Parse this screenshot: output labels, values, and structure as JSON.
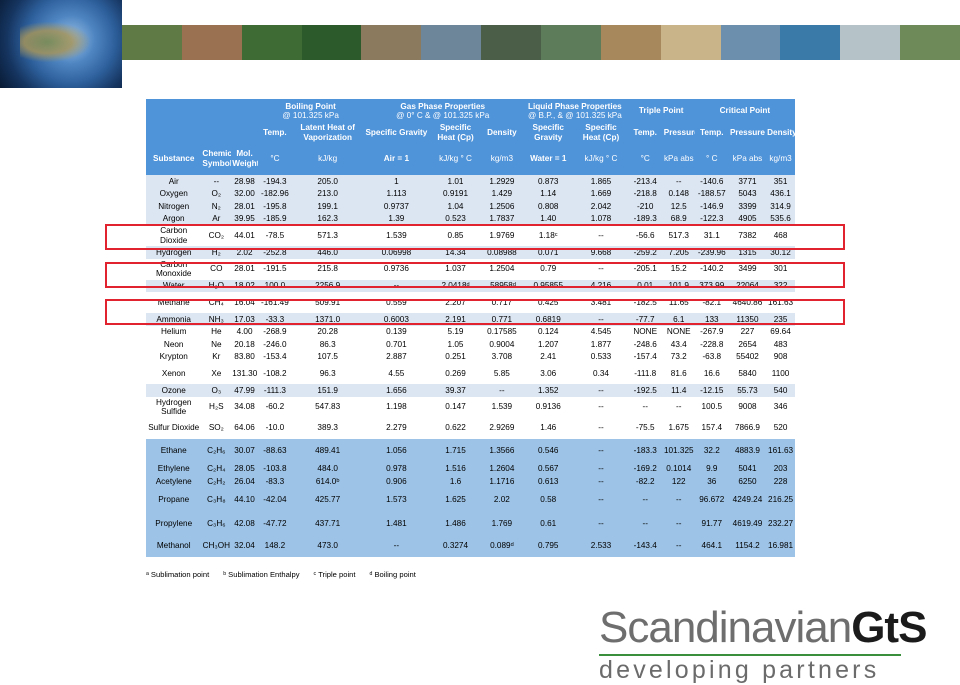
{
  "banner": {
    "tiles": [
      "#5f7a45",
      "#9a7252",
      "#3e6b34",
      "#2d5a2a",
      "#8b7a5e",
      "#6e8699",
      "#4a5e48",
      "#5d7d5a",
      "#a7885c",
      "#c9b489",
      "#6d8fae",
      "#3a7aa8",
      "#b5c2c8",
      "#6e8a59"
    ]
  },
  "table": {
    "group_headers": {
      "bp_title": "Boiling Point",
      "bp_sub": "@ 101.325 kPa",
      "gas_title": "Gas Phase Properties",
      "gas_sub": "@ 0° C & @ 101.325 kPa",
      "liq_title": "Liquid Phase Properties",
      "liq_sub": "@ B.P., & @ 101.325 kPa",
      "triple": "Triple Point",
      "critical": "Critical Point"
    },
    "sub_headers": {
      "bp_temp": "Temp.",
      "bp_latent": "Latent Heat of Vaporization",
      "gas_sg": "Specific Gravity",
      "gas_cp": "Specific Heat (Cp)",
      "gas_density": "Density",
      "liq_sg": "Specific Gravity",
      "liq_cp": "Specific Heat (Cp)",
      "tp_temp": "Temp.",
      "tp_pressure": "Pressure",
      "cp_temp": "Temp.",
      "cp_pressure": "Pressure",
      "cp_density": "Density"
    },
    "unit_headers": {
      "substance": "Substance",
      "symbol": "Chemical Symbol",
      "mol": "Mol. Weight",
      "bp_temp": "°C",
      "bp_latent": "kJ/kg",
      "gas_sg": "Air = 1",
      "gas_cp": "kJ/kg ° C",
      "gas_density": "kg/m3",
      "liq_sg": "Water = 1",
      "liq_cp": "kJ/kg ° C",
      "tp_temp": "°C",
      "tp_pressure": "kPa abs",
      "cp_temp": "° C",
      "cp_pressure": "kPa abs",
      "cp_density": "kg/m3"
    },
    "rows": [
      {
        "name": "Air",
        "symbol": "--",
        "mw": "28.98",
        "bp": "-194.3",
        "latent": "205.0",
        "gsg": "1",
        "gcp": "1.01",
        "gden": "1.2929",
        "lsg": "0.873",
        "lcp": "1.865",
        "tpt": "-213.4",
        "tpp": "--",
        "cpt": "-140.6",
        "cpp": "3771",
        "cpd": "351"
      },
      {
        "name": "Oxygen",
        "symbol": "O₂",
        "mw": "32.00",
        "bp": "-182.96",
        "latent": "213.0",
        "gsg": "1.113",
        "gcp": "0.9191",
        "gden": "1.429",
        "lsg": "1.14",
        "lcp": "1.669",
        "tpt": "-218.8",
        "tpp": "0.148",
        "cpt": "-188.57",
        "cpp": "5043",
        "cpd": "436.1"
      },
      {
        "name": "Nitrogen",
        "symbol": "N₂",
        "mw": "28.01",
        "bp": "-195.8",
        "latent": "199.1",
        "gsg": "0.9737",
        "gcp": "1.04",
        "gden": "1.2506",
        "lsg": "0.808",
        "lcp": "2.042",
        "tpt": "-210",
        "tpp": "12.5",
        "cpt": "-146.9",
        "cpp": "3399",
        "cpd": "314.9"
      },
      {
        "name": "Argon",
        "symbol": "Ar",
        "mw": "39.95",
        "bp": "-185.9",
        "latent": "162.3",
        "gsg": "1.39",
        "gcp": "0.523",
        "gden": "1.7837",
        "lsg": "1.40",
        "lcp": "1.078",
        "tpt": "-189.3",
        "tpp": "68.9",
        "cpt": "-122.3",
        "cpp": "4905",
        "cpd": "535.6"
      },
      {
        "name": "Carbon Dioxide",
        "symbol": "CO₂",
        "mw": "44.01",
        "bp": "-78.5",
        "latent": "571.3",
        "gsg": "1.539",
        "gcp": "0.85",
        "gden": "1.9769",
        "lsg": "1.18ᶜ",
        "lcp": "--",
        "tpt": "-56.6",
        "tpp": "517.3",
        "cpt": "31.1",
        "cpp": "7382",
        "cpd": "468"
      },
      {
        "name": "Hydrogen",
        "symbol": "H₂",
        "mw": "2.02",
        "bp": "-252.8",
        "latent": "446.0",
        "gsg": "0.06998",
        "gcp": "14.34",
        "gden": "0.08988",
        "lsg": "0.071",
        "lcp": "9.668",
        "tpt": "-259.2",
        "tpp": "7.205",
        "cpt": "-239.96",
        "cpp": "1315",
        "cpd": "30.12"
      },
      {
        "name": "Carbon Monoxide",
        "symbol": "CO",
        "mw": "28.01",
        "bp": "-191.5",
        "latent": "215.8",
        "gsg": "0.9736",
        "gcp": "1.037",
        "gden": "1.2504",
        "lsg": "0.79",
        "lcp": "--",
        "tpt": "-205.1",
        "tpp": "15.2",
        "cpt": "-140.2",
        "cpp": "3499",
        "cpd": "301"
      },
      {
        "name": "Water",
        "symbol": "H₂O",
        "mw": "18.02",
        "bp": "100.0",
        "latent": "2256.9",
        "gsg": "--",
        "gcp": "2.0418ᵈ",
        "gden": ".58958ᵈ",
        "lsg": "0.95855",
        "lcp": "4.216",
        "tpt": "0.01",
        "tpp": "101.9",
        "cpt": "373.99",
        "cpp": "22064",
        "cpd": "322"
      },
      {
        "name": "Methane",
        "symbol": "CH₄",
        "mw": "16.04",
        "bp": "-161.49",
        "latent": "509.91",
        "gsg": "0.559",
        "gcp": "2.207",
        "gden": "0.717",
        "lsg": "0.425",
        "lcp": "3.481",
        "tpt": "-182.5",
        "tpp": "11.65",
        "cpt": "-82.1",
        "cpp": "4640.86",
        "cpd": "161.63"
      },
      {
        "name": "Ammonia",
        "symbol": "NH₃",
        "mw": "17.03",
        "bp": "-33.3",
        "latent": "1371.0",
        "gsg": "0.6003",
        "gcp": "2.191",
        "gden": "0.771",
        "lsg": "0.6819",
        "lcp": "--",
        "tpt": "-77.7",
        "tpp": "6.1",
        "cpt": "133",
        "cpp": "11350",
        "cpd": "235"
      },
      {
        "name": "Helium",
        "symbol": "He",
        "mw": "4.00",
        "bp": "-268.9",
        "latent": "20.28",
        "gsg": "0.139",
        "gcp": "5.19",
        "gden": "0.17585",
        "lsg": "0.124",
        "lcp": "4.545",
        "tpt": "NONE",
        "tpp": "NONE",
        "cpt": "-267.9",
        "cpp": "227",
        "cpd": "69.64"
      },
      {
        "name": "Neon",
        "symbol": "Ne",
        "mw": "20.18",
        "bp": "-246.0",
        "latent": "86.3",
        "gsg": "0.701",
        "gcp": "1.05",
        "gden": "0.9004",
        "lsg": "1.207",
        "lcp": "1.877",
        "tpt": "-248.6",
        "tpp": "43.4",
        "cpt": "-228.8",
        "cpp": "2654",
        "cpd": "483"
      },
      {
        "name": "Krypton",
        "symbol": "Kr",
        "mw": "83.80",
        "bp": "-153.4",
        "latent": "107.5",
        "gsg": "2.887",
        "gcp": "0.251",
        "gden": "3.708",
        "lsg": "2.41",
        "lcp": "0.533",
        "tpt": "-157.4",
        "tpp": "73.2",
        "cpt": "-63.8",
        "cpp": "55402",
        "cpd": "908"
      },
      {
        "name": "Xenon",
        "symbol": "Xe",
        "mw": "131.30",
        "bp": "-108.2",
        "latent": "96.3",
        "gsg": "4.55",
        "gcp": "0.269",
        "gden": "5.85",
        "lsg": "3.06",
        "lcp": "0.34",
        "tpt": "-111.8",
        "tpp": "81.6",
        "cpt": "16.6",
        "cpp": "5840",
        "cpd": "1100"
      },
      {
        "name": "Ozone",
        "symbol": "O₃",
        "mw": "47.99",
        "bp": "-111.3",
        "latent": "151.9",
        "gsg": "1.656",
        "gcp": "39.37",
        "gden": "--",
        "lsg": "1.352",
        "lcp": "--",
        "tpt": "-192.5",
        "tpp": "11.4",
        "cpt": "-12.15",
        "cpp": "55.73",
        "cpd": "540"
      },
      {
        "name": "Hydrogen Sulfide",
        "symbol": "H₂S",
        "mw": "34.08",
        "bp": "-60.2",
        "latent": "547.83",
        "gsg": "1.198",
        "gcp": "0.147",
        "gden": "1.539",
        "lsg": "0.9136",
        "lcp": "--",
        "tpt": "--",
        "tpp": "--",
        "cpt": "100.5",
        "cpp": "9008",
        "cpd": "346"
      },
      {
        "name": "Sulfur Dioxide",
        "symbol": "SO₂",
        "mw": "64.06",
        "bp": "-10.0",
        "latent": "389.3",
        "gsg": "2.279",
        "gcp": "0.622",
        "gden": "2.9269",
        "lsg": "1.46",
        "lcp": "--",
        "tpt": "-75.5",
        "tpp": "1.675",
        "cpt": "157.4",
        "cpp": "7866.9",
        "cpd": "520"
      },
      {
        "name": "Ethane",
        "symbol": "C₂H₆",
        "mw": "30.07",
        "bp": "-88.63",
        "latent": "489.41",
        "gsg": "1.056",
        "gcp": "1.715",
        "gden": "1.3566",
        "lsg": "0.546",
        "lcp": "--",
        "tpt": "-183.3",
        "tpp": "101.325",
        "cpt": "32.2",
        "cpp": "4883.9",
        "cpd": "161.63"
      },
      {
        "name": "Ethylene",
        "symbol": "C₂H₄",
        "mw": "28.05",
        "bp": "-103.8",
        "latent": "484.0",
        "gsg": "0.978",
        "gcp": "1.516",
        "gden": "1.2604",
        "lsg": "0.567",
        "lcp": "--",
        "tpt": "-169.2",
        "tpp": "0.1014",
        "cpt": "9.9",
        "cpp": "5041",
        "cpd": "203"
      },
      {
        "name": "Acetylene",
        "symbol": "C₂H₂",
        "mw": "26.04",
        "bp": "-83.3",
        "latent": "614.0ᵇ",
        "gsg": "0.906",
        "gcp": "1.6",
        "gden": "1.1716",
        "lsg": "0.613",
        "lcp": "--",
        "tpt": "-82.2",
        "tpp": "122",
        "cpt": "36",
        "cpp": "6250",
        "cpd": "228"
      },
      {
        "name": "Propane",
        "symbol": "C₃H₈",
        "mw": "44.10",
        "bp": "-42.04",
        "latent": "425.77",
        "gsg": "1.573",
        "gcp": "1.625",
        "gden": "2.02",
        "lsg": "0.58",
        "lcp": "--",
        "tpt": "--",
        "tpp": "--",
        "cpt": "96.672",
        "cpp": "4249.24",
        "cpd": "216.25"
      },
      {
        "name": "Propylene",
        "symbol": "C₃H₆",
        "mw": "42.08",
        "bp": "-47.72",
        "latent": "437.71",
        "gsg": "1.481",
        "gcp": "1.486",
        "gden": "1.769",
        "lsg": "0.61",
        "lcp": "--",
        "tpt": "--",
        "tpp": "--",
        "cpt": "91.77",
        "cpp": "4619.49",
        "cpd": "232.27"
      },
      {
        "name": "Methanol",
        "symbol": "CH₃OH",
        "mw": "32.04",
        "bp": "148.2",
        "latent": "473.0",
        "gsg": "--",
        "gcp": "0.3274",
        "gden": "0.089ᵈ",
        "lsg": "0.795",
        "lcp": "2.533",
        "tpt": "-143.4",
        "tpp": "--",
        "cpt": "464.1",
        "cpp": "1154.2",
        "cpd": "16.981"
      }
    ],
    "footnotes": [
      "ᵃ Sublimation point",
      "ᵇ Sublimation Enthalpy",
      "ᶜ Triple point",
      "ᵈ Boiling point"
    ]
  },
  "logo": {
    "brand_main": "Scandinavian",
    "brand_bold": "GtS",
    "tagline": "developing partners"
  }
}
